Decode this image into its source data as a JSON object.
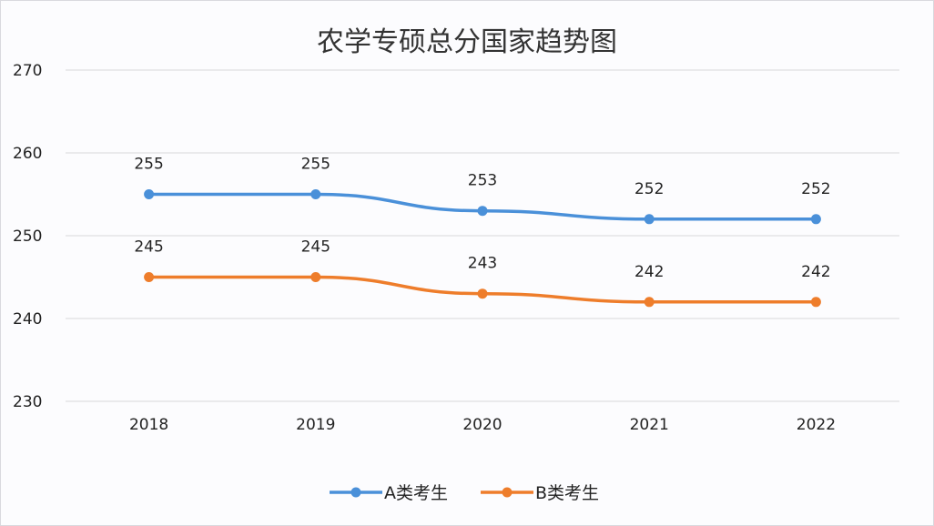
{
  "chart_data": {
    "type": "line",
    "title": "农学专硕总分国家趋势图",
    "xlabel": "",
    "ylabel": "",
    "categories": [
      "2018",
      "2019",
      "2020",
      "2021",
      "2022"
    ],
    "ylim": [
      230,
      270
    ],
    "yticks": [
      230,
      240,
      250,
      260,
      270
    ],
    "grid": true,
    "legend_position": "bottom",
    "series": [
      {
        "name": "A类考生",
        "color": "#4A90D9",
        "values": [
          255,
          255,
          253,
          252,
          252
        ]
      },
      {
        "name": "B类考生",
        "color": "#EE7D2B",
        "values": [
          245,
          245,
          243,
          242,
          242
        ]
      }
    ]
  }
}
